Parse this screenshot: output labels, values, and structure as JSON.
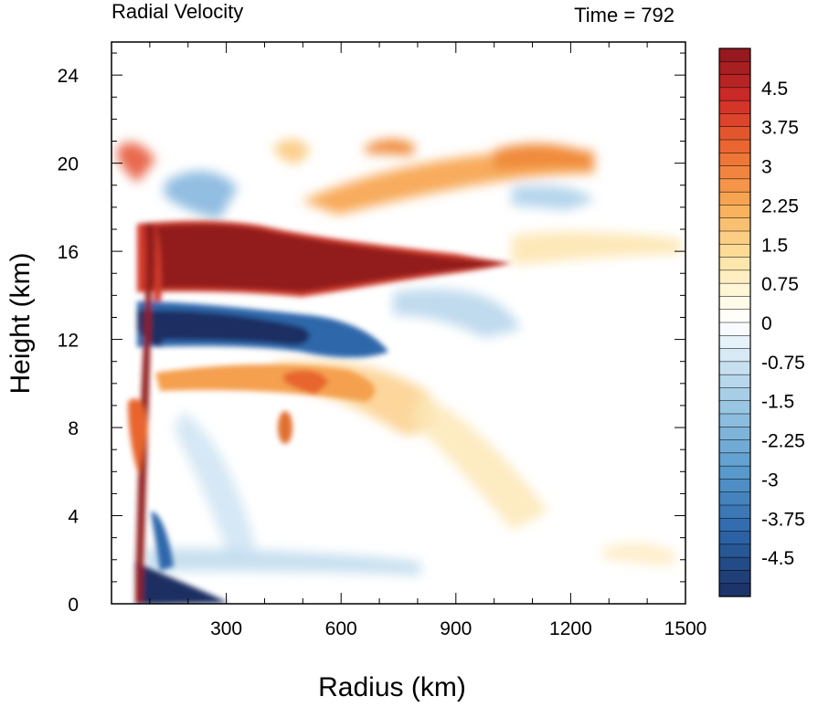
{
  "chart_data": {
    "type": "heatmap",
    "title": "Radial Velocity",
    "subtitle": "Time = 792",
    "xlabel": "Radius (km)",
    "ylabel": "Height (km)",
    "xlim": [
      0,
      1500
    ],
    "ylim": [
      0,
      25.5
    ],
    "xticks": [
      300,
      600,
      900,
      1200,
      1500
    ],
    "xtick_labels": [
      "300",
      "600",
      "900",
      "1200",
      "1500"
    ],
    "yticks": [
      0,
      4,
      8,
      12,
      16,
      20,
      24
    ],
    "ytick_labels": [
      "0",
      "4",
      "8",
      "12",
      "16",
      "20",
      "24"
    ],
    "colorbar": {
      "min": -5.25,
      "max": 5.25,
      "step": 0.25,
      "tick_values": [
        4.5,
        3.75,
        3,
        2.25,
        1.5,
        0.75,
        0,
        -0.75,
        -1.5,
        -2.25,
        -3,
        -3.75,
        -4.5
      ],
      "tick_labels": [
        "4.5",
        "3.75",
        "3",
        "2.25",
        "1.5",
        "0.75",
        "0",
        "-0.75",
        "-1.5",
        "-2.25",
        "-3",
        "-3.75",
        "-4.5"
      ]
    },
    "features": [
      {
        "name": "upper outflow jet",
        "r_start": 70,
        "r_end": 1070,
        "z_top": 17.2,
        "z_bottom": 14.3,
        "value": 5.25
      },
      {
        "name": "mid-level inflow",
        "r_start": 70,
        "r_end": 650,
        "z_center": 12.2,
        "value": -5.0
      },
      {
        "name": "low-level inflow",
        "r_start": 70,
        "r_end": 450,
        "z_center": 0.4,
        "value": -5.0
      },
      {
        "name": "eyewall outflow column",
        "r_start": 70,
        "r_end": 130,
        "z_bottom": 0,
        "z_top": 17,
        "value": 4.5
      },
      {
        "name": "upper outflow layer",
        "r_start": 650,
        "r_end": 1250,
        "z_center": 19.5,
        "value": 2.8
      },
      {
        "name": "mid-level outflow",
        "r_start": 120,
        "r_end": 900,
        "z_center": 9.5,
        "value": 2.0
      },
      {
        "name": "upper inflow",
        "r_start": 150,
        "r_end": 1250,
        "z_center": 18,
        "value": -1.6
      }
    ]
  }
}
